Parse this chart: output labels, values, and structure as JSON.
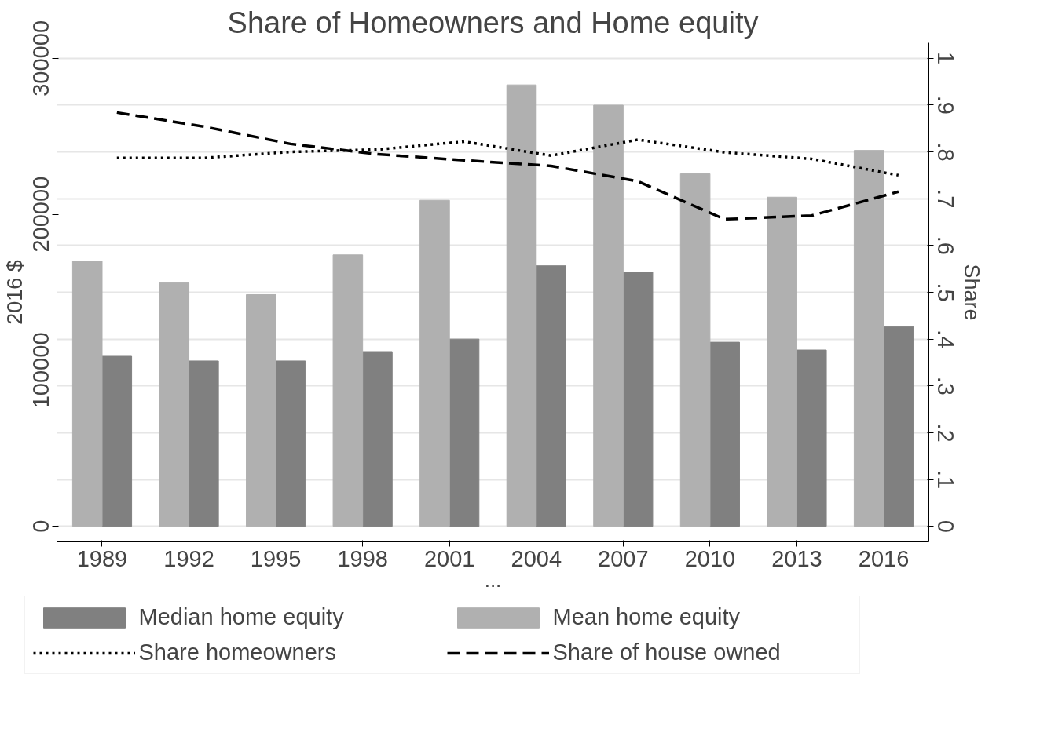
{
  "chart_data": {
    "type": "bar",
    "title": "Share of Homeowners and Home equity",
    "xlabel": "...",
    "ylabel": "2016 $",
    "y2label": "Share",
    "categories": [
      "1989",
      "1992",
      "1995",
      "1998",
      "2001",
      "2004",
      "2007",
      "2010",
      "2013",
      "2016"
    ],
    "series": [
      {
        "name": "Median home equity",
        "type": "bar",
        "color": "#808080",
        "values": [
          109000,
          106000,
          106000,
          112000,
          120000,
          167000,
          163000,
          118000,
          113000,
          128000
        ]
      },
      {
        "name": "Mean home equity",
        "type": "bar",
        "color": "#b0b0b0",
        "values": [
          170000,
          156000,
          148500,
          174000,
          209000,
          283000,
          270000,
          226000,
          211000,
          241000
        ]
      },
      {
        "name": "Share homeowners",
        "type": "line",
        "axis": "y2",
        "color": "#000000",
        "line_style": "dotted",
        "values": [
          0.787,
          0.787,
          0.8,
          0.805,
          0.822,
          0.792,
          0.826,
          0.799,
          0.785,
          0.75
        ]
      },
      {
        "name": "Share of house owned",
        "type": "line",
        "axis": "y2",
        "color": "#000000",
        "line_style": "dashed",
        "values": [
          0.884,
          0.854,
          0.817,
          0.795,
          0.782,
          0.77,
          0.737,
          0.656,
          0.664,
          0.715
        ]
      }
    ],
    "ylim": [
      -10000,
      310000
    ],
    "yticks": [
      0,
      100000,
      200000,
      300000
    ],
    "y2lim": [
      -0.033,
      1.033
    ],
    "y2ticks": [
      0,
      {
        "value": 0.1,
        "label": ".1"
      },
      {
        "value": 0.2,
        "label": ".2"
      },
      {
        "value": 0.3,
        "label": ".3"
      },
      {
        "value": 0.4,
        "label": ".4"
      },
      {
        "value": 0.5,
        "label": ".5"
      },
      {
        "value": 0.6,
        "label": ".6"
      },
      {
        "value": 0.7,
        "label": ".7"
      },
      {
        "value": 0.8,
        "label": ".8"
      },
      {
        "value": 0.9,
        "label": ".9"
      },
      1
    ],
    "grid": "y2",
    "legend": "bottom"
  }
}
